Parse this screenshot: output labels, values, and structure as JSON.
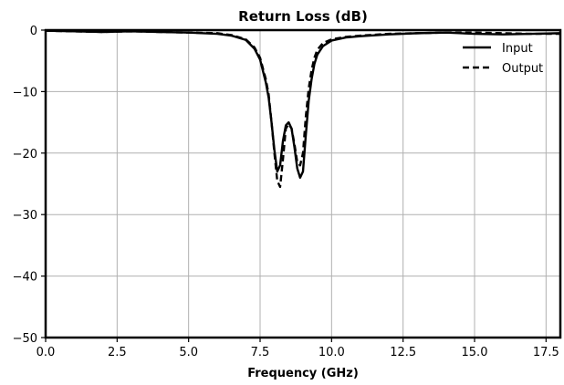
{
  "chart_data": {
    "type": "line",
    "title": "Return Loss (dB)",
    "xlabel": "Frequency (GHz)",
    "ylabel": "",
    "xlim": [
      0,
      18
    ],
    "ylim": [
      -50,
      0
    ],
    "xticks": [
      0.0,
      2.5,
      5.0,
      7.5,
      10.0,
      12.5,
      15.0,
      17.5
    ],
    "xtick_labels": [
      "0.0",
      "2.5",
      "5.0",
      "7.5",
      "10.0",
      "12.5",
      "15.0",
      "17.5"
    ],
    "yticks": [
      0,
      -10,
      -20,
      -30,
      -40,
      -50
    ],
    "ytick_labels": [
      "0",
      "−10",
      "−20",
      "−30",
      "−40",
      "−50"
    ],
    "grid": true,
    "legend_position": "top-right",
    "series": [
      {
        "name": "Input",
        "style": "solid",
        "color": "#000000",
        "x": [
          0,
          1,
          2,
          3,
          4,
          5,
          6,
          6.5,
          7,
          7.3,
          7.5,
          7.7,
          7.8,
          7.9,
          8.0,
          8.1,
          8.2,
          8.3,
          8.4,
          8.5,
          8.6,
          8.7,
          8.8,
          8.9,
          9.0,
          9.1,
          9.2,
          9.3,
          9.4,
          9.5,
          9.7,
          10.0,
          10.5,
          11.0,
          12.0,
          13.0,
          14.0,
          15.0,
          16.0,
          17.0,
          18.0
        ],
        "y": [
          -0.1,
          -0.2,
          -0.3,
          -0.2,
          -0.3,
          -0.4,
          -0.6,
          -0.9,
          -1.6,
          -3.0,
          -4.8,
          -8.5,
          -11.0,
          -15.0,
          -19.5,
          -23.0,
          -22.0,
          -18.0,
          -15.5,
          -15.0,
          -16.0,
          -19.0,
          -22.5,
          -24.0,
          -23.0,
          -17.0,
          -11.5,
          -8.0,
          -5.5,
          -4.0,
          -2.6,
          -1.7,
          -1.2,
          -1.0,
          -0.7,
          -0.5,
          -0.4,
          -0.6,
          -0.7,
          -0.6,
          -0.5
        ]
      },
      {
        "name": "Output",
        "style": "dashed",
        "color": "#000000",
        "x": [
          0,
          1,
          2,
          3,
          4,
          5,
          6,
          6.5,
          7,
          7.3,
          7.5,
          7.7,
          7.8,
          7.9,
          8.0,
          8.1,
          8.2,
          8.3,
          8.4,
          8.5,
          8.6,
          8.7,
          8.8,
          8.9,
          9.0,
          9.1,
          9.2,
          9.3,
          9.4,
          9.5,
          9.7,
          10.0,
          10.5,
          11.0,
          12.0,
          13.0,
          14.0,
          15.0,
          16.0,
          17.0,
          18.0
        ],
        "y": [
          -0.1,
          -0.2,
          -0.3,
          -0.2,
          -0.3,
          -0.4,
          -0.5,
          -0.8,
          -1.5,
          -2.8,
          -4.5,
          -8.0,
          -10.5,
          -15.0,
          -20.0,
          -24.5,
          -25.5,
          -21.0,
          -16.0,
          -15.3,
          -16.0,
          -18.5,
          -21.5,
          -22.0,
          -20.0,
          -14.0,
          -9.5,
          -6.5,
          -4.5,
          -3.2,
          -2.1,
          -1.5,
          -1.1,
          -0.9,
          -0.6,
          -0.5,
          -0.4,
          -0.4,
          -0.5,
          -0.6,
          -0.6
        ]
      }
    ]
  }
}
